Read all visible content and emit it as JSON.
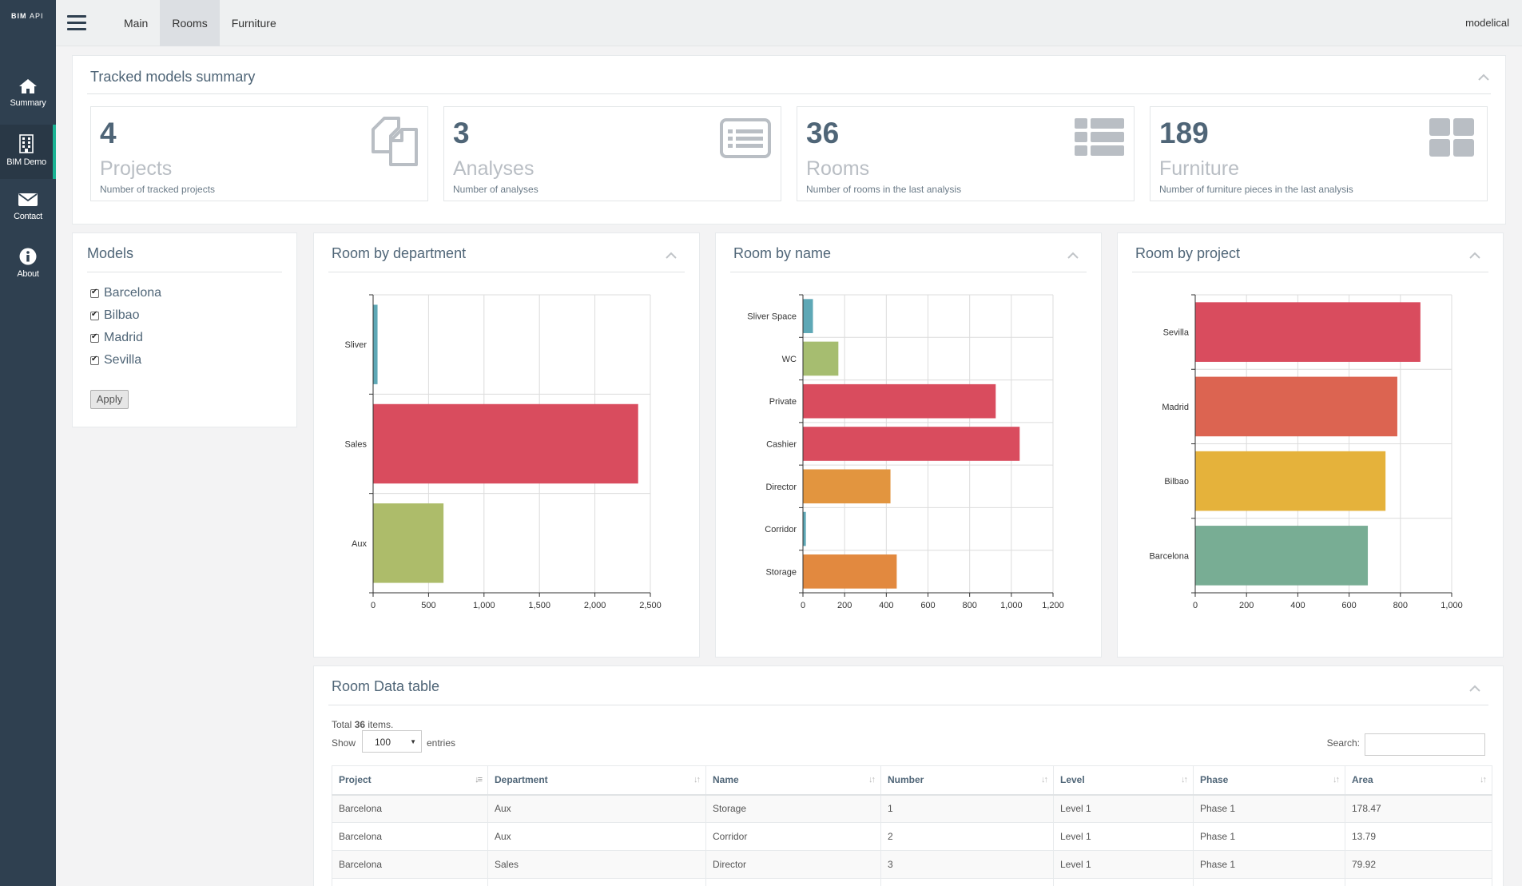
{
  "brand": {
    "bold": "BIM",
    "light": "API"
  },
  "sidebar": {
    "items": [
      {
        "label": "Summary",
        "icon": "home-icon"
      },
      {
        "label": "BIM Demo",
        "icon": "building-icon"
      },
      {
        "label": "Contact",
        "icon": "envelope-icon"
      },
      {
        "label": "About",
        "icon": "info-icon"
      }
    ]
  },
  "topnav": {
    "items": [
      "Main",
      "Rooms",
      "Furniture"
    ],
    "active": "Rooms",
    "user": "modelical"
  },
  "summary": {
    "title": "Tracked models summary",
    "cards": [
      {
        "number": "4",
        "title": "Projects",
        "desc": "Number of tracked projects",
        "icon": "copy-icon"
      },
      {
        "number": "3",
        "title": "Analyses",
        "desc": "Number of analyses",
        "icon": "list-alt-icon"
      },
      {
        "number": "36",
        "title": "Rooms",
        "desc": "Number of rooms in the last analysis",
        "icon": "th-list-icon"
      },
      {
        "number": "189",
        "title": "Furniture",
        "desc": "Number of furniture pieces in the last analysis",
        "icon": "th-large-icon"
      }
    ]
  },
  "models": {
    "title": "Models",
    "items": [
      {
        "label": "Barcelona",
        "checked": true
      },
      {
        "label": "Bilbao",
        "checked": true
      },
      {
        "label": "Madrid",
        "checked": true
      },
      {
        "label": "Sevilla",
        "checked": true
      }
    ],
    "apply_label": "Apply"
  },
  "chart_data": [
    {
      "type": "bar",
      "orientation": "horizontal",
      "title": "Room by department",
      "categories": [
        "Sliver",
        "Sales",
        "Aux"
      ],
      "values": [
        40,
        2390,
        635
      ],
      "colors": [
        "#5ea8b6",
        "#d94c5e",
        "#adbc6a"
      ],
      "xlim": [
        0,
        2500
      ],
      "xticks": [
        0,
        500,
        1000,
        1500,
        2000,
        2500
      ],
      "xtick_labels": [
        "0",
        "500",
        "1,000",
        "1,500",
        "2,000",
        "2,500"
      ],
      "grid": true
    },
    {
      "type": "bar",
      "orientation": "horizontal",
      "title": "Room by name",
      "categories": [
        "Sliver Space",
        "WC",
        "Private",
        "Cashier",
        "Director",
        "Corridor",
        "Storage"
      ],
      "values": [
        48,
        170,
        925,
        1040,
        420,
        14,
        450
      ],
      "colors": [
        "#5ea8b6",
        "#a6bd70",
        "#d94c5e",
        "#d94c5e",
        "#e2953f",
        "#5ea8b6",
        "#e2893f"
      ],
      "xlim": [
        0,
        1200
      ],
      "xticks": [
        0,
        200,
        400,
        600,
        800,
        1000,
        1200
      ],
      "xtick_labels": [
        "0",
        "200",
        "400",
        "600",
        "800",
        "1,000",
        "1,200"
      ],
      "grid": true
    },
    {
      "type": "bar",
      "orientation": "horizontal",
      "title": "Room by project",
      "categories": [
        "Sevilla",
        "Madrid",
        "Bilbao",
        "Barcelona"
      ],
      "values": [
        878,
        788,
        742,
        673
      ],
      "colors": [
        "#d94c5e",
        "#dc6451",
        "#e5b23b",
        "#78ad94"
      ],
      "xlim": [
        0,
        1000
      ],
      "xticks": [
        0,
        200,
        400,
        600,
        800,
        1000
      ],
      "xtick_labels": [
        "0",
        "200",
        "400",
        "600",
        "800",
        "1,000"
      ],
      "grid": true
    }
  ],
  "table": {
    "title": "Room Data table",
    "total_prefix": "Total ",
    "total_count": "36",
    "total_suffix": " items.",
    "show_label": "Show",
    "entries_value": "100",
    "entries_label": "entries",
    "search_label": "Search:",
    "columns": [
      "Project",
      "Department",
      "Name",
      "Number",
      "Level",
      "Phase",
      "Area"
    ],
    "rows": [
      [
        "Barcelona",
        "Aux",
        "Storage",
        "1",
        "Level 1",
        "Phase 1",
        "178.47"
      ],
      [
        "Barcelona",
        "Aux",
        "Corridor",
        "2",
        "Level 1",
        "Phase 1",
        "13.79"
      ],
      [
        "Barcelona",
        "Sales",
        "Director",
        "3",
        "Level 1",
        "Phase 1",
        "79.92"
      ],
      [
        "",
        "",
        "",
        "",
        "",
        "",
        ""
      ]
    ]
  }
}
